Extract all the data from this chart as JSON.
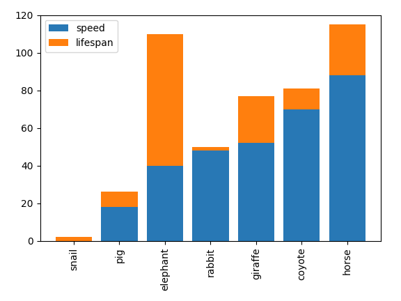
{
  "categories": [
    "snail",
    "pig",
    "elephant",
    "rabbit",
    "giraffe",
    "coyote",
    "horse"
  ],
  "speed": [
    0.03,
    18,
    40,
    48,
    52,
    70,
    88
  ],
  "lifespan": [
    2,
    8,
    70,
    2,
    25,
    11,
    27
  ],
  "speed_color": "#2878b5",
  "lifespan_color": "#ff7f0e",
  "legend_labels": [
    "speed",
    "lifespan"
  ],
  "ylim": [
    0,
    120
  ],
  "yticks": [
    0,
    20,
    40,
    60,
    80,
    100,
    120
  ]
}
